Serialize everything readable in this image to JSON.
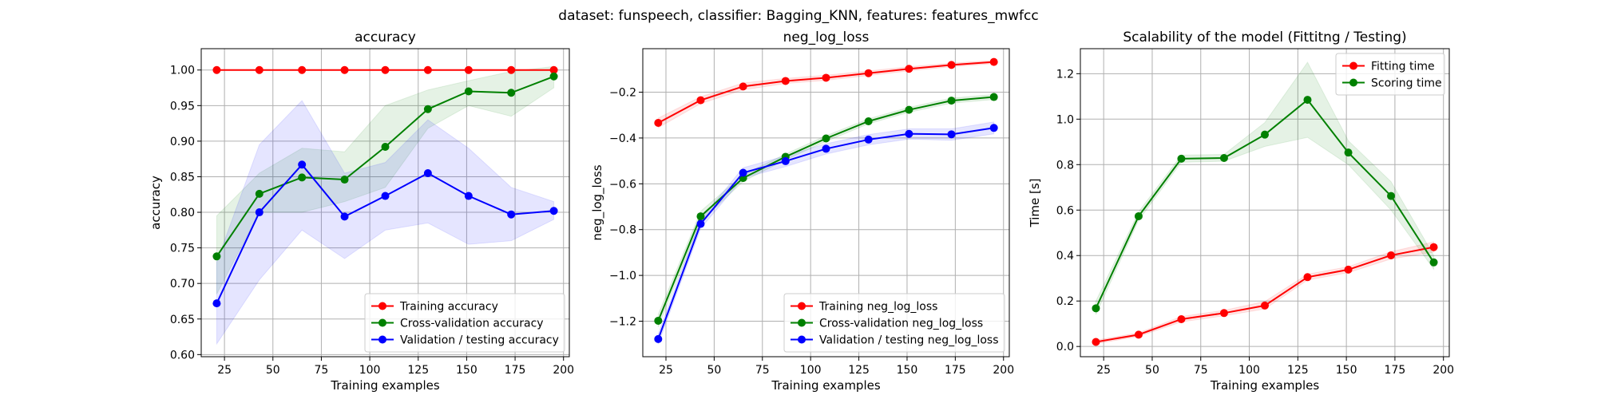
{
  "suptitle": "dataset: funspeech, classifier: Bagging_KNN, features: features_mwfcc",
  "colors": {
    "train": "#ff0000",
    "cv": "#008000",
    "val": "#0000ff"
  },
  "chart_data": [
    {
      "type": "line",
      "title": "accuracy",
      "xlabel": "Training examples",
      "ylabel": "accuracy",
      "xlim": [
        13,
        203
      ],
      "ylim": [
        0.597,
        1.03
      ],
      "xticks": [
        25,
        50,
        75,
        100,
        125,
        150,
        175,
        200
      ],
      "yticks": [
        0.6,
        0.65,
        0.7,
        0.75,
        0.8,
        0.85,
        0.9,
        0.95,
        1.0
      ],
      "ytick_labels": [
        "0.60",
        "0.65",
        "0.70",
        "0.75",
        "0.80",
        "0.85",
        "0.90",
        "0.95",
        "1.00"
      ],
      "grid": true,
      "legend_position": "lower-right",
      "x": [
        21,
        43,
        65,
        87,
        108,
        130,
        151,
        173,
        195
      ],
      "series": [
        {
          "name": "Training accuracy",
          "color": "#ff0000",
          "values": [
            1.0,
            1.0,
            1.0,
            1.0,
            1.0,
            1.0,
            1.0,
            1.0,
            1.0
          ],
          "lower": [
            1.0,
            1.0,
            1.0,
            1.0,
            1.0,
            1.0,
            1.0,
            1.0,
            1.0
          ],
          "upper": [
            1.0,
            1.0,
            1.0,
            1.0,
            1.0,
            1.0,
            1.0,
            1.0,
            1.0
          ]
        },
        {
          "name": "Cross-validation accuracy",
          "color": "#008000",
          "values": [
            0.738,
            0.826,
            0.849,
            0.846,
            0.892,
            0.945,
            0.97,
            0.968,
            0.991
          ],
          "lower": [
            0.685,
            0.8,
            0.8,
            0.815,
            0.835,
            0.918,
            0.95,
            0.935,
            0.975
          ],
          "upper": [
            0.795,
            0.855,
            0.89,
            0.885,
            0.95,
            0.972,
            0.985,
            0.998,
            1.005
          ]
        },
        {
          "name": "Validation / testing accuracy",
          "color": "#0000ff",
          "values": [
            0.672,
            0.8,
            0.867,
            0.794,
            0.823,
            0.855,
            0.823,
            0.797,
            0.802
          ],
          "lower": [
            0.615,
            0.705,
            0.775,
            0.735,
            0.775,
            0.785,
            0.755,
            0.76,
            0.79
          ],
          "upper": [
            0.73,
            0.895,
            0.957,
            0.855,
            0.87,
            0.93,
            0.89,
            0.835,
            0.815
          ]
        }
      ]
    },
    {
      "type": "line",
      "title": "neg_log_loss",
      "xlabel": "Training examples",
      "ylabel": "neg_log_loss",
      "xlim": [
        13,
        203
      ],
      "ylim": [
        -1.355,
        -0.01
      ],
      "xticks": [
        25,
        50,
        75,
        100,
        125,
        150,
        175,
        200
      ],
      "yticks": [
        -1.2,
        -1.0,
        -0.8,
        -0.6,
        -0.4,
        -0.2
      ],
      "ytick_labels": [
        "−1.2",
        "−1.0",
        "−0.8",
        "−0.6",
        "−0.4",
        "−0.2"
      ],
      "grid": true,
      "legend_position": "lower-right",
      "x": [
        21,
        43,
        65,
        87,
        108,
        130,
        151,
        173,
        195
      ],
      "series": [
        {
          "name": "Training neg_log_loss",
          "color": "#ff0000",
          "values": [
            -0.334,
            -0.235,
            -0.175,
            -0.151,
            -0.137,
            -0.117,
            -0.098,
            -0.081,
            -0.068
          ],
          "lower": [
            -0.355,
            -0.25,
            -0.19,
            -0.162,
            -0.148,
            -0.127,
            -0.107,
            -0.089,
            -0.075
          ],
          "upper": [
            -0.313,
            -0.22,
            -0.16,
            -0.14,
            -0.126,
            -0.107,
            -0.089,
            -0.073,
            -0.061
          ]
        },
        {
          "name": "Cross-validation neg_log_loss",
          "color": "#008000",
          "values": [
            -1.198,
            -0.742,
            -0.575,
            -0.482,
            -0.402,
            -0.327,
            -0.277,
            -0.237,
            -0.221
          ],
          "lower": [
            -1.225,
            -0.765,
            -0.59,
            -0.495,
            -0.415,
            -0.338,
            -0.288,
            -0.248,
            -0.232
          ],
          "upper": [
            -1.17,
            -0.72,
            -0.56,
            -0.47,
            -0.39,
            -0.316,
            -0.266,
            -0.226,
            -0.21
          ]
        },
        {
          "name": "Validation / testing neg_log_loss",
          "color": "#0000ff",
          "values": [
            -1.278,
            -0.775,
            -0.552,
            -0.501,
            -0.447,
            -0.407,
            -0.382,
            -0.384,
            -0.356
          ],
          "lower": [
            -1.3,
            -0.795,
            -0.575,
            -0.525,
            -0.47,
            -0.43,
            -0.405,
            -0.41,
            -0.382
          ],
          "upper": [
            -1.255,
            -0.755,
            -0.53,
            -0.478,
            -0.425,
            -0.385,
            -0.36,
            -0.36,
            -0.33
          ]
        }
      ]
    },
    {
      "type": "line",
      "title": "Scalability of the model (Fittitng / Testing)",
      "xlabel": "Training examples",
      "ylabel": "Time [s]",
      "xlim": [
        13,
        203
      ],
      "ylim": [
        -0.045,
        1.31
      ],
      "xticks": [
        25,
        50,
        75,
        100,
        125,
        150,
        175,
        200
      ],
      "yticks": [
        0.0,
        0.2,
        0.4,
        0.6,
        0.8,
        1.0,
        1.2
      ],
      "ytick_labels": [
        "0.0",
        "0.2",
        "0.4",
        "0.6",
        "0.8",
        "1.0",
        "1.2"
      ],
      "grid": true,
      "legend_position": "upper-right",
      "x": [
        21,
        43,
        65,
        87,
        108,
        130,
        151,
        173,
        195
      ],
      "series": [
        {
          "name": "Fitting time",
          "color": "#ff0000",
          "values": [
            0.02,
            0.052,
            0.12,
            0.147,
            0.18,
            0.305,
            0.338,
            0.401,
            0.437
          ],
          "lower": [
            0.012,
            0.044,
            0.108,
            0.135,
            0.165,
            0.292,
            0.325,
            0.385,
            0.415
          ],
          "upper": [
            0.028,
            0.06,
            0.132,
            0.159,
            0.198,
            0.318,
            0.351,
            0.417,
            0.46
          ]
        },
        {
          "name": "Scoring time",
          "color": "#008000",
          "values": [
            0.168,
            0.573,
            0.826,
            0.829,
            0.932,
            1.085,
            0.853,
            0.662,
            0.37
          ],
          "lower": [
            0.14,
            0.555,
            0.81,
            0.815,
            0.88,
            0.92,
            0.8,
            0.6,
            0.34
          ],
          "upper": [
            0.2,
            0.592,
            0.842,
            0.845,
            0.985,
            1.25,
            0.905,
            0.725,
            0.4
          ]
        }
      ]
    }
  ]
}
